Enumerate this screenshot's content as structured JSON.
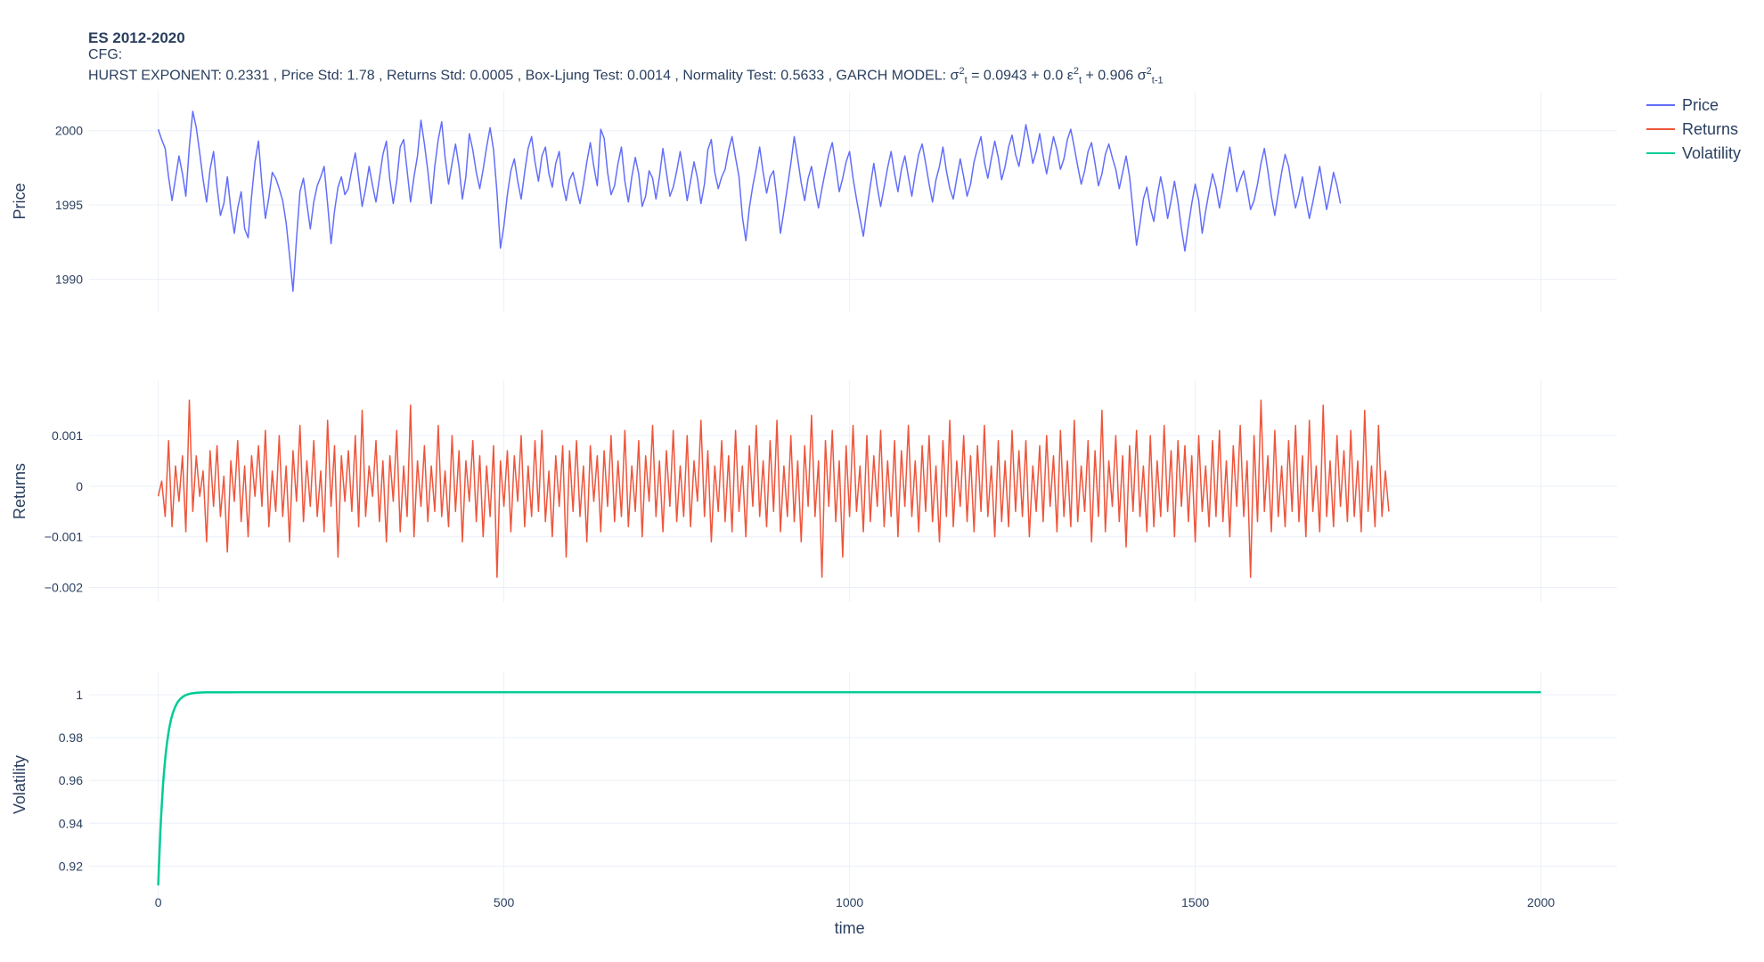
{
  "header": {
    "title": "ES 2012-2020",
    "cfg_label": "CFG:",
    "stats_prefix": "HURST EXPONENT: 0.2331 , Price Std: 1.78 , Returns Std: 0.0005 , Box-Ljung Test: 0.0014 , Normality Test: 0.5633 , GARCH MODEL: σ",
    "garch_tail": {
      "sup1": "2",
      "sub1": "t",
      "eq": " = 0.0943 + 0.0 ε",
      "sup2": "2",
      "sub2": "t",
      "plus": " + 0.906 σ",
      "sup3": "2",
      "sub3": "t-1"
    }
  },
  "chart_data": {
    "type": "line",
    "x_axis": {
      "label": "time",
      "range": [
        -100,
        2110
      ],
      "ticks": [
        0,
        500,
        1000,
        1500,
        2000
      ],
      "tick_labels": [
        "0",
        "500",
        "1000",
        "1500",
        "2000"
      ]
    },
    "legend": {
      "placement": "top-right",
      "entries": [
        "Price",
        "Returns",
        "Volatility"
      ]
    },
    "grid": true,
    "series": [
      {
        "name": "Price",
        "color": "#636efa",
        "subplot": 1,
        "ylabel": "Price",
        "ylim": [
          1988.3,
          2002.2
        ],
        "yticks": [
          1990,
          1995,
          2000
        ],
        "ytick_labels": [
          "1990",
          "1995",
          "2000"
        ],
        "x_start": 0,
        "x_step": 5,
        "points_note": "sampled every 5 time steps",
        "values": [
          2000.1,
          1999.4,
          1998.8,
          1996.9,
          1995.3,
          1996.8,
          1998.3,
          1997.1,
          1995.6,
          1998.9,
          2001.3,
          2000.2,
          1998.5,
          1996.7,
          1995.2,
          1997.4,
          1998.6,
          1996.2,
          1994.3,
          1995.1,
          1996.9,
          1994.7,
          1993.1,
          1994.8,
          1995.9,
          1993.4,
          1992.8,
          1995.6,
          1997.9,
          1999.3,
          1996.4,
          1994.1,
          1995.5,
          1997.2,
          1996.8,
          1996.1,
          1995.3,
          1993.8,
          1991.6,
          1989.2,
          1992.7,
          1995.9,
          1996.8,
          1995.1,
          1993.4,
          1995.2,
          1996.3,
          1996.9,
          1997.6,
          1995.1,
          1992.4,
          1994.6,
          1996.2,
          1996.9,
          1995.7,
          1996.1,
          1997.4,
          1998.5,
          1996.8,
          1994.9,
          1996.1,
          1997.6,
          1996.3,
          1995.2,
          1996.8,
          1998.4,
          1999.3,
          1996.7,
          1995.1,
          1996.6,
          1998.9,
          1999.4,
          1997.3,
          1995.2,
          1996.9,
          1998.3,
          2000.7,
          1999.1,
          1997.3,
          1995.1,
          1997.6,
          1999.4,
          2000.6,
          1998.2,
          1996.4,
          1997.8,
          1999.1,
          1997.6,
          1995.4,
          1996.9,
          1999.8,
          1998.7,
          1997.2,
          1996.1,
          1997.4,
          1998.9,
          2000.2,
          1998.7,
          1995.8,
          1992.1,
          1993.6,
          1995.7,
          1997.3,
          1998.1,
          1996.6,
          1995.4,
          1997.2,
          1998.8,
          1999.6,
          1997.9,
          1996.6,
          1998.3,
          1998.9,
          1997.1,
          1996.2,
          1997.8,
          1998.6,
          1996.4,
          1995.3,
          1996.7,
          1997.2,
          1996.1,
          1995.1,
          1996.4,
          1997.9,
          1999.2,
          1997.6,
          1996.3,
          2000.1,
          1999.5,
          1997.2,
          1995.7,
          1996.3,
          1997.8,
          1998.9,
          1996.6,
          1995.2,
          1996.9,
          1998.2,
          1997.1,
          1994.9,
          1995.6,
          1997.3,
          1996.8,
          1995.4,
          1996.9,
          1998.8,
          1997.2,
          1995.6,
          1996.2,
          1997.3,
          1998.6,
          1997.1,
          1995.3,
          1996.6,
          1997.9,
          1996.8,
          1995.1,
          1996.4,
          1998.7,
          1999.4,
          1997.2,
          1996.1,
          1996.9,
          1997.4,
          1998.7,
          1999.6,
          1998.2,
          1996.9,
          1994.2,
          1992.6,
          1994.8,
          1996.3,
          1997.5,
          1998.9,
          1997.2,
          1995.8,
          1996.9,
          1997.3,
          1995.4,
          1993.1,
          1994.6,
          1996.2,
          1997.8,
          1999.6,
          1998.1,
          1996.5,
          1995.3,
          1996.8,
          1997.6,
          1996.1,
          1994.8,
          1996.1,
          1997.3,
          1998.4,
          1999.2,
          1997.6,
          1995.9,
          1996.8,
          1997.9,
          1998.6,
          1996.8,
          1995.4,
          1994.1,
          1992.9,
          1994.7,
          1996.3,
          1997.8,
          1996.2,
          1994.9,
          1996.2,
          1997.5,
          1998.6,
          1997.1,
          1995.9,
          1997.4,
          1998.3,
          1996.9,
          1995.6,
          1997.1,
          1998.4,
          1999.1,
          1997.8,
          1996.4,
          1995.2,
          1996.7,
          1997.6,
          1998.9,
          1997.3,
          1996.1,
          1995.4,
          1996.8,
          1998.1,
          1996.9,
          1995.6,
          1996.4,
          1997.9,
          1998.8,
          1999.6,
          1997.9,
          1996.8,
          1998.1,
          1999.3,
          1998.2,
          1996.7,
          1997.6,
          1998.9,
          1999.7,
          1998.4,
          1997.6,
          1998.9,
          2000.4,
          1999.2,
          1997.8,
          1998.6,
          1999.8,
          1998.3,
          1997.1,
          1998.4,
          1999.6,
          1998.7,
          1997.4,
          1998.1,
          1999.4,
          2000.1,
          1998.9,
          1997.6,
          1996.4,
          1997.3,
          1998.6,
          1999.2,
          1997.8,
          1996.3,
          1997.1,
          1998.4,
          1999.1,
          1998.2,
          1997.4,
          1996.1,
          1997.2,
          1998.3,
          1996.9,
          1994.6,
          1992.3,
          1993.7,
          1995.4,
          1996.2,
          1994.8,
          1993.9,
          1995.6,
          1996.9,
          1995.7,
          1994.1,
          1995.3,
          1996.6,
          1995.2,
          1993.4,
          1991.9,
          1993.6,
          1995.1,
          1996.4,
          1995.3,
          1993.1,
          1994.6,
          1995.9,
          1997.1,
          1996.2,
          1994.8,
          1996.1,
          1997.6,
          1998.9,
          1997.4,
          1995.9,
          1996.7,
          1997.3,
          1996.1,
          1994.7,
          1995.3,
          1996.4,
          1997.8,
          1998.8,
          1997.3,
          1995.6,
          1994.3,
          1995.8,
          1997.2,
          1998.4,
          1997.6,
          1996.1,
          1994.8,
          1995.7,
          1996.9,
          1995.4,
          1994.1,
          1995.2,
          1996.4,
          1997.6,
          1996.1,
          1994.7,
          1995.9,
          1997.2,
          1996.3,
          1995.1
        ]
      },
      {
        "name": "Returns",
        "color": "#ef553b",
        "subplot": 2,
        "ylabel": "Returns",
        "ylim": [
          -0.00215,
          0.00195
        ],
        "yticks": [
          -0.002,
          -0.001,
          0,
          0.001
        ],
        "ytick_labels": [
          "−0.002",
          "−0.001",
          "0",
          "0.001"
        ],
        "x_start": 0,
        "x_step": 5,
        "points_note": "sampled every 5 time steps",
        "values": [
          -0.0002,
          0.0001,
          -0.0006,
          0.0009,
          -0.0008,
          0.0004,
          -0.0003,
          0.0006,
          -0.0009,
          0.0017,
          -0.0005,
          0.0006,
          -0.0002,
          0.0003,
          -0.0011,
          0.0007,
          -0.0004,
          0.0008,
          -0.0006,
          0.0002,
          -0.0013,
          0.0005,
          -0.0003,
          0.0009,
          -0.0007,
          0.0004,
          -0.001,
          0.0006,
          -0.0002,
          0.0008,
          -0.0004,
          0.0011,
          -0.0008,
          0.0003,
          -0.0005,
          0.001,
          -0.0006,
          0.0004,
          -0.0011,
          0.0007,
          -0.0003,
          0.0012,
          -0.0007,
          0.0005,
          -0.0004,
          0.0009,
          -0.0006,
          0.0003,
          -0.0009,
          0.0013,
          -0.0004,
          0.0008,
          -0.0014,
          0.0006,
          -0.0003,
          0.0007,
          -0.0005,
          0.001,
          -0.0008,
          0.0015,
          -0.0006,
          0.0004,
          -0.0002,
          0.0009,
          -0.0007,
          0.0005,
          -0.0011,
          0.0006,
          -0.0003,
          0.0011,
          -0.0009,
          0.0004,
          -0.0006,
          0.0016,
          -0.001,
          0.0005,
          -0.0004,
          0.0008,
          -0.0007,
          0.0004,
          -0.0005,
          0.0012,
          -0.0006,
          0.0003,
          -0.0008,
          0.001,
          -0.0005,
          0.0007,
          -0.0011,
          0.0005,
          -0.0003,
          0.0009,
          -0.0007,
          0.0006,
          -0.001,
          0.0004,
          -0.0006,
          0.0008,
          -0.0018,
          0.0005,
          -0.0004,
          0.0007,
          -0.0009,
          0.0006,
          -0.0003,
          0.001,
          -0.0008,
          0.0004,
          -0.0006,
          0.0009,
          -0.0005,
          0.0011,
          -0.0007,
          0.0003,
          -0.001,
          0.0006,
          -0.0004,
          0.0008,
          -0.0014,
          0.0007,
          -0.0005,
          0.0009,
          -0.0006,
          0.0004,
          -0.0011,
          0.0008,
          -0.0003,
          0.0006,
          -0.0009,
          0.0007,
          -0.0004,
          0.001,
          -0.0007,
          0.0005,
          -0.0006,
          0.0011,
          -0.0008,
          0.0004,
          -0.0005,
          0.0009,
          -0.001,
          0.0006,
          -0.0003,
          0.0012,
          -0.0006,
          0.0005,
          -0.0009,
          0.0007,
          -0.0004,
          0.0011,
          -0.0007,
          0.0004,
          -0.0006,
          0.001,
          -0.0008,
          0.0005,
          -0.0003,
          0.0013,
          -0.0006,
          0.0007,
          -0.0011,
          0.0004,
          -0.0005,
          0.0009,
          -0.0007,
          0.0006,
          -0.0009,
          0.0011,
          -0.0005,
          0.0004,
          -0.001,
          0.0008,
          -0.0004,
          0.0012,
          -0.0006,
          0.0005,
          -0.0008,
          0.0009,
          -0.0005,
          0.0013,
          -0.0009,
          0.0004,
          -0.0006,
          0.001,
          -0.0007,
          0.0005,
          -0.0011,
          0.0008,
          -0.0004,
          0.0014,
          -0.0006,
          0.0005,
          -0.0018,
          0.0009,
          -0.0004,
          0.0011,
          -0.0007,
          0.0005,
          -0.0014,
          0.0008,
          -0.0006,
          0.0012,
          -0.0005,
          0.0004,
          -0.0009,
          0.001,
          -0.0007,
          0.0006,
          -0.0004,
          0.0011,
          -0.0008,
          0.0005,
          -0.0006,
          0.0009,
          -0.001,
          0.0007,
          -0.0004,
          0.0012,
          -0.0006,
          0.0005,
          -0.0009,
          0.0008,
          -0.0005,
          0.001,
          -0.0007,
          0.0004,
          -0.0011,
          0.0009,
          -0.0006,
          0.0013,
          -0.0008,
          0.0005,
          -0.0004,
          0.001,
          -0.0007,
          0.0006,
          -0.0009,
          0.0008,
          -0.0005,
          0.0012,
          -0.0006,
          0.0004,
          -0.001,
          0.0009,
          -0.0007,
          0.0005,
          -0.0008,
          0.0011,
          -0.0005,
          0.0007,
          -0.0006,
          0.0009,
          -0.001,
          0.0004,
          -0.0005,
          0.0008,
          -0.0007,
          0.001,
          -0.0004,
          0.0006,
          -0.0009,
          0.0011,
          -0.0006,
          0.0005,
          -0.0008,
          0.0013,
          -0.0007,
          0.0004,
          -0.0005,
          0.0009,
          -0.0011,
          0.0007,
          -0.0006,
          0.0015,
          -0.0009,
          0.0005,
          -0.0004,
          0.001,
          -0.0007,
          0.0006,
          -0.0012,
          0.0008,
          -0.0005,
          0.0011,
          -0.0006,
          0.0004,
          -0.0009,
          0.001,
          -0.0008,
          0.0005,
          -0.0006,
          0.0012,
          -0.0005,
          0.0007,
          -0.001,
          0.0009,
          -0.0004,
          0.0008,
          -0.0007,
          0.0006,
          -0.0011,
          0.001,
          -0.0005,
          0.0004,
          -0.0008,
          0.0009,
          -0.0006,
          0.0011,
          -0.0007,
          0.0005,
          -0.001,
          0.0008,
          -0.0004,
          0.0012,
          -0.0006,
          0.0005,
          -0.0018,
          0.001,
          -0.0007,
          0.0017,
          -0.0005,
          0.0006,
          -0.0009,
          0.0011,
          -0.0006,
          0.0004,
          -0.0008,
          0.0009,
          -0.0005,
          0.0012,
          -0.0007,
          0.0006,
          -0.001,
          0.0013,
          -0.0005,
          0.0004,
          -0.0009,
          0.0016,
          -0.0006,
          0.0005,
          -0.0008,
          0.001,
          -0.0004,
          0.0007,
          -0.0007,
          0.0011,
          -0.0006,
          0.0005,
          -0.0009,
          0.0015,
          -0.0005,
          0.0004,
          -0.0008,
          0.0012,
          -0.0006,
          0.0003,
          -0.0005
        ]
      },
      {
        "name": "Volatility",
        "color": "#00cc96",
        "subplot": 3,
        "ylabel": "Volatility",
        "ylim": [
          0.9085,
          1.0075
        ],
        "yticks": [
          0.92,
          0.94,
          0.96,
          0.98,
          1
        ],
        "ytick_labels": [
          "0.92",
          "0.94",
          "0.96",
          "0.98",
          "1"
        ],
        "model": {
          "start": 0.911,
          "asymptote": 1.0012,
          "decay_steps": 9.5
        },
        "x_range": [
          0,
          2000
        ]
      }
    ]
  }
}
